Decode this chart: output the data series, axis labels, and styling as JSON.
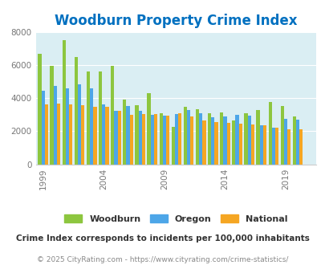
{
  "title": "Woodburn Property Crime Index",
  "years": [
    1999,
    2000,
    2001,
    2002,
    2003,
    2004,
    2005,
    2006,
    2007,
    2008,
    2009,
    2010,
    2011,
    2012,
    2013,
    2014,
    2015,
    2016,
    2017,
    2018,
    2019,
    2020,
    2021
  ],
  "woodburn": [
    6650,
    5950,
    7500,
    6500,
    5600,
    5600,
    5950,
    3900,
    3550,
    4300,
    3100,
    2250,
    3450,
    3350,
    3100,
    3150,
    2650,
    3100,
    3300,
    3750,
    3500,
    2900,
    0
  ],
  "oregon": [
    4450,
    4750,
    4600,
    4850,
    4600,
    3600,
    3250,
    3500,
    3250,
    3000,
    2950,
    3050,
    3300,
    3100,
    2850,
    2900,
    3000,
    2950,
    2350,
    2200,
    2750,
    2700,
    0
  ],
  "national": [
    3600,
    3650,
    3600,
    3550,
    3450,
    3450,
    3250,
    3000,
    3050,
    3050,
    2950,
    3100,
    2900,
    2650,
    2550,
    2500,
    2450,
    2400,
    2350,
    2200,
    2100,
    2100,
    0
  ],
  "bar_colors": {
    "woodburn": "#8dc63f",
    "oregon": "#4da6e8",
    "national": "#f5a623"
  },
  "bg_color": "#daeef3",
  "ylim": [
    0,
    8000
  ],
  "yticks": [
    0,
    2000,
    4000,
    6000,
    8000
  ],
  "xtick_labels": [
    "1999",
    "2004",
    "2009",
    "2014",
    "2019"
  ],
  "legend_labels": [
    "Woodburn",
    "Oregon",
    "National"
  ],
  "subtitle": "Crime Index corresponds to incidents per 100,000 inhabitants",
  "footer": "© 2025 CityRating.com - https://www.cityrating.com/crime-statistics/",
  "title_color": "#0070c0",
  "subtitle_color": "#333333",
  "footer_color": "#888888",
  "title_fontsize": 12,
  "subtitle_fontsize": 7.5,
  "footer_fontsize": 6.5,
  "legend_fontsize": 8,
  "tick_fontsize": 7.5,
  "bar_width": 0.28,
  "grid_color": "#ffffff",
  "axis_label_color": "#777777"
}
